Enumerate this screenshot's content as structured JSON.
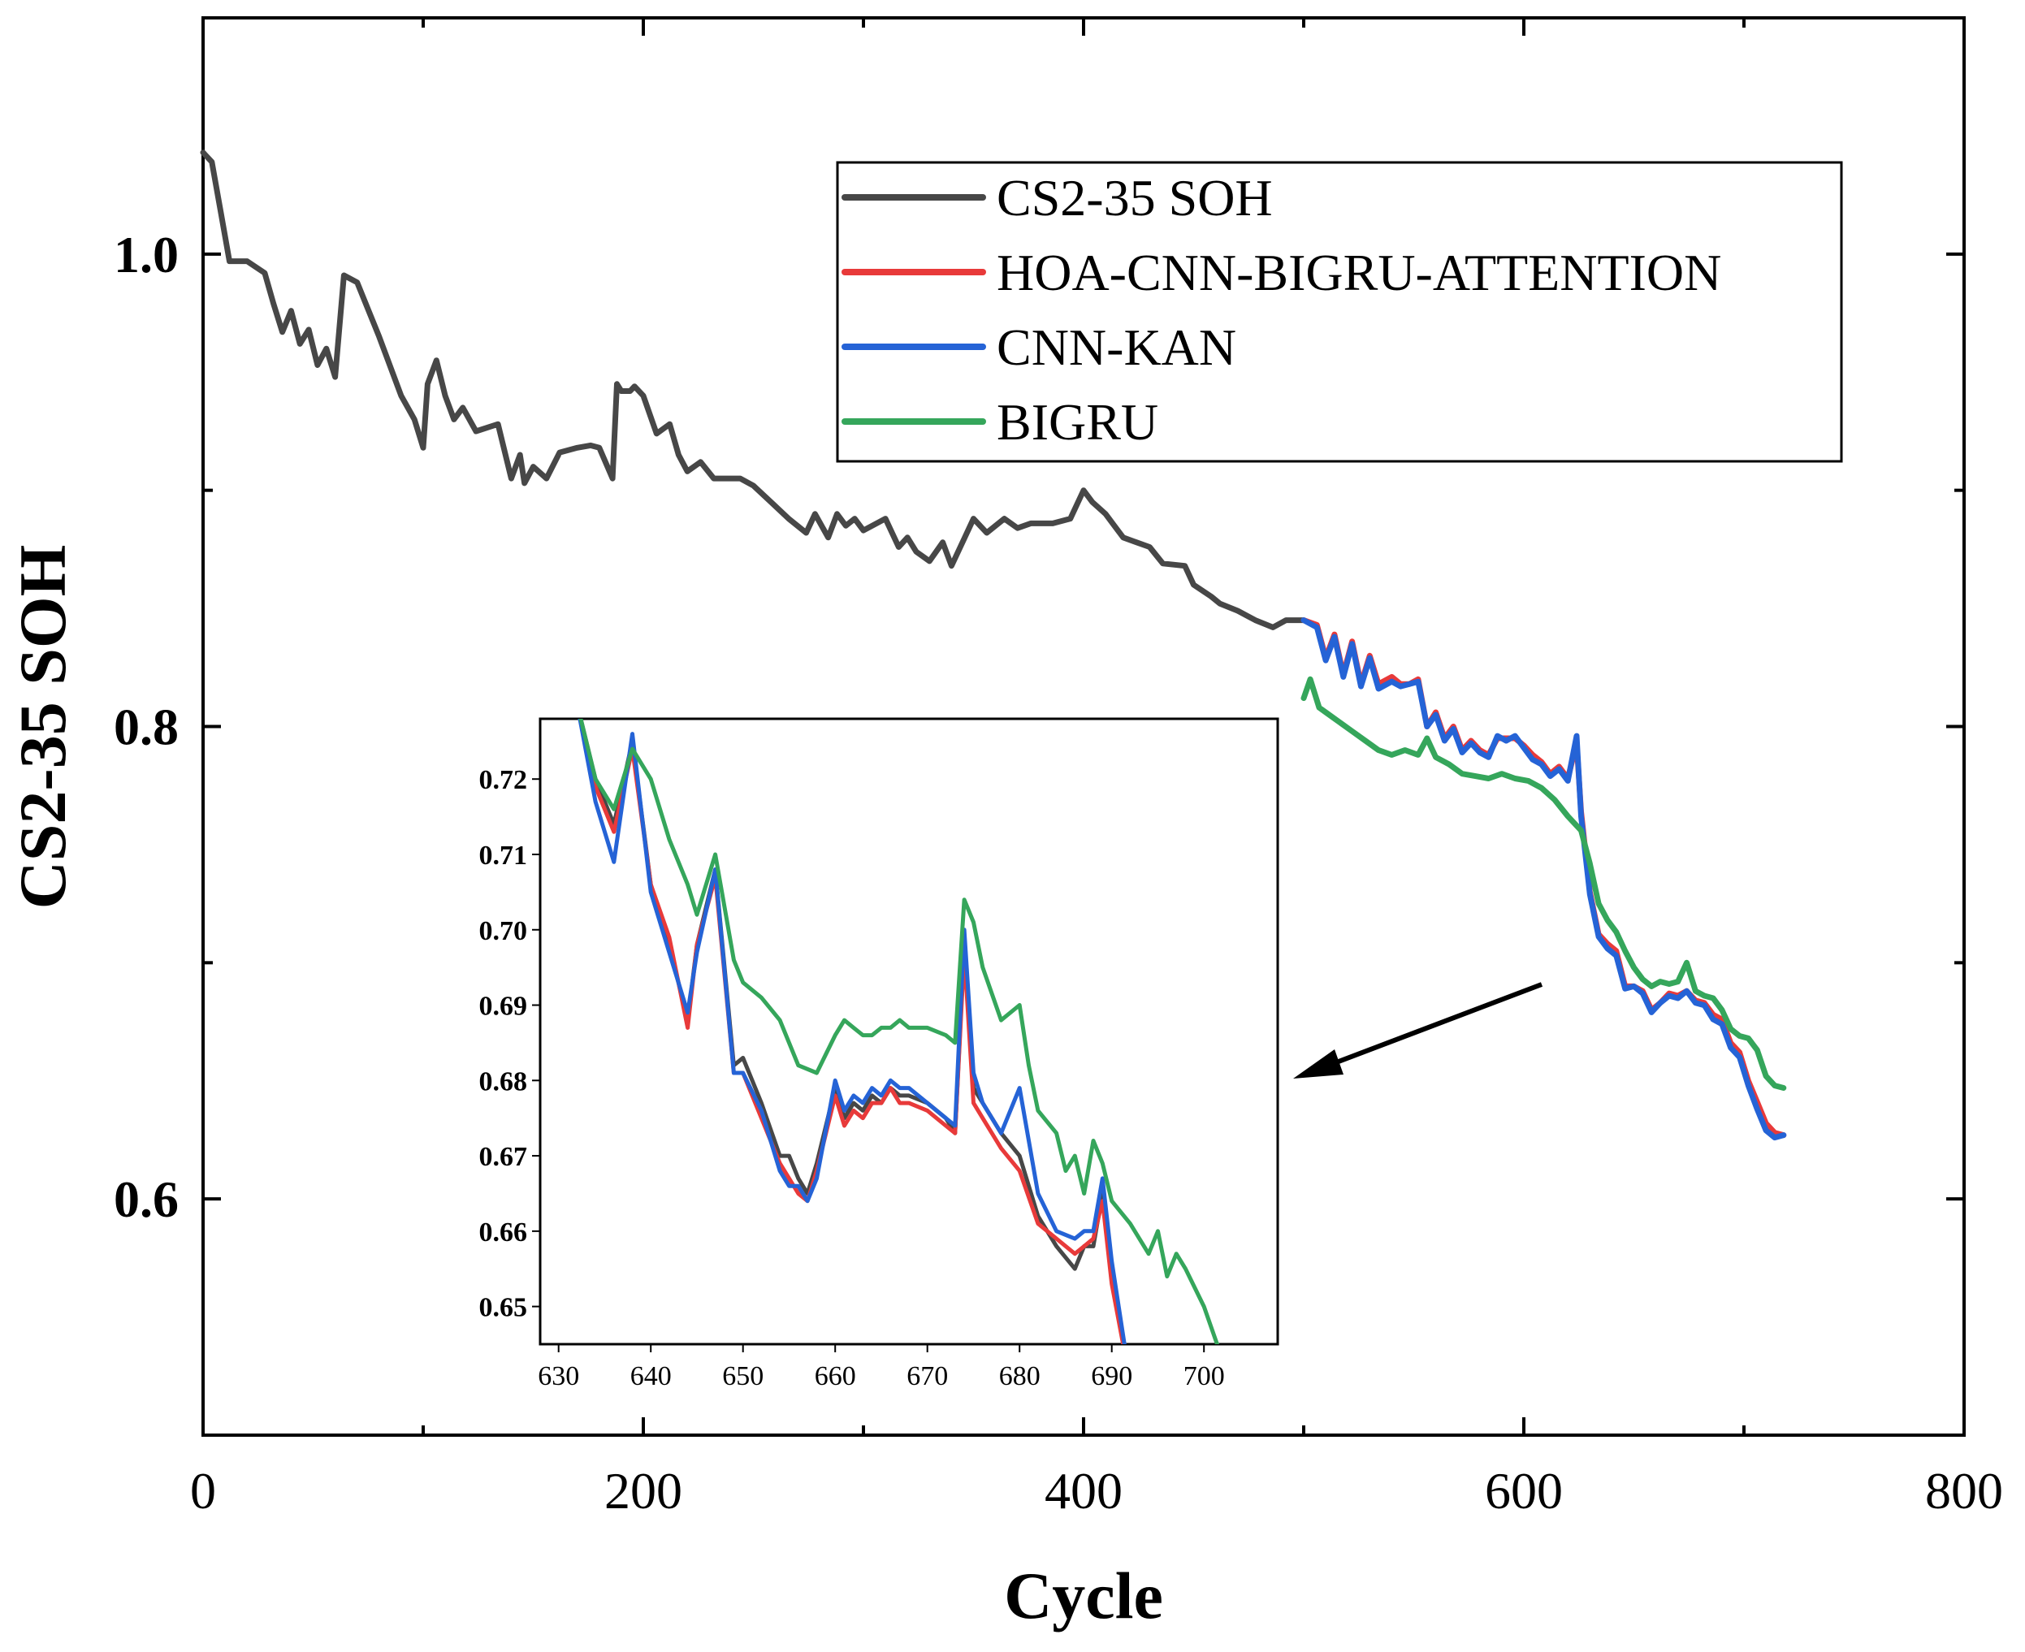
{
  "chart_data": {
    "type": "line",
    "xlabel": "Cycle",
    "ylabel": "CS2-35 SOH",
    "xlim": [
      0,
      800
    ],
    "ylim": [
      0.5,
      1.1
    ],
    "xticks": [
      "0",
      "200",
      "400",
      "600",
      "800"
    ],
    "yticks": [
      "0.6",
      "0.8",
      "1.0"
    ],
    "grid": false,
    "legend_position": "top-right",
    "series": [
      {
        "name": "CS2-35 SOH",
        "color": "#474747",
        "x": [
          0,
          4,
          8,
          12,
          20,
          28,
          32,
          36,
          40,
          44,
          48,
          52,
          56,
          60,
          64,
          70,
          80,
          90,
          96,
          100,
          102,
          106,
          110,
          114,
          118,
          124,
          134,
          140,
          144,
          146,
          150,
          156,
          162,
          170,
          176,
          180,
          186,
          188,
          190,
          194,
          196,
          200,
          206,
          212,
          216,
          220,
          226,
          232,
          238,
          244,
          250,
          258,
          266,
          274,
          278,
          284,
          288,
          292,
          296,
          300,
          310,
          316,
          320,
          324,
          330,
          336,
          340,
          346,
          350,
          356,
          364,
          370,
          376,
          386,
          394,
          400,
          404,
          410,
          414,
          418,
          424,
          430,
          436,
          446,
          450,
          458,
          462,
          470,
          478,
          486,
          492,
          500
        ],
        "y": [
          1.043,
          1.039,
          1.018,
          0.997,
          0.997,
          0.992,
          0.979,
          0.967,
          0.976,
          0.962,
          0.968,
          0.953,
          0.96,
          0.948,
          0.991,
          0.988,
          0.965,
          0.94,
          0.93,
          0.918,
          0.945,
          0.955,
          0.94,
          0.93,
          0.935,
          0.925,
          0.928,
          0.905,
          0.915,
          0.903,
          0.91,
          0.905,
          0.916,
          0.918,
          0.919,
          0.918,
          0.905,
          0.945,
          0.942,
          0.942,
          0.944,
          0.94,
          0.924,
          0.928,
          0.915,
          0.908,
          0.912,
          0.905,
          0.905,
          0.905,
          0.902,
          0.895,
          0.888,
          0.882,
          0.89,
          0.88,
          0.89,
          0.885,
          0.888,
          0.883,
          0.888,
          0.876,
          0.88,
          0.874,
          0.87,
          0.878,
          0.868,
          0.88,
          0.888,
          0.882,
          0.888,
          0.884,
          0.886,
          0.886,
          0.888,
          0.9,
          0.895,
          0.89,
          0.885,
          0.88,
          0.878,
          0.876,
          0.869,
          0.868,
          0.86,
          0.855,
          0.852,
          0.849,
          0.845,
          0.842,
          0.845,
          0.845
        ]
      },
      {
        "name": "HOA-CNN-BIGRU-ATTENTION",
        "color": "#e83a3a",
        "x": [
          500,
          506,
          510,
          514,
          518,
          522,
          526,
          530,
          534,
          540,
          544,
          548,
          552,
          556,
          560,
          564,
          568,
          572,
          576,
          580,
          584,
          588,
          592,
          596,
          600,
          604,
          608,
          612,
          616,
          620,
          624,
          626,
          630,
          634,
          638,
          642,
          646,
          650,
          654,
          658,
          662,
          666,
          670,
          674,
          678,
          682,
          686,
          690,
          694,
          698,
          702,
          706,
          710,
          714,
          718
        ],
        "y": [
          0.845,
          0.843,
          0.829,
          0.839,
          0.822,
          0.836,
          0.818,
          0.83,
          0.818,
          0.821,
          0.818,
          0.818,
          0.82,
          0.8,
          0.806,
          0.795,
          0.8,
          0.79,
          0.794,
          0.79,
          0.788,
          0.795,
          0.795,
          0.795,
          0.792,
          0.788,
          0.785,
          0.78,
          0.783,
          0.778,
          0.793,
          0.764,
          0.73,
          0.712,
          0.708,
          0.705,
          0.69,
          0.69,
          0.688,
          0.68,
          0.683,
          0.687,
          0.686,
          0.688,
          0.684,
          0.683,
          0.678,
          0.676,
          0.666,
          0.662,
          0.65,
          0.641,
          0.632,
          0.628,
          0.627
        ]
      },
      {
        "name": "CNN-KAN",
        "color": "#2563d6",
        "x": [
          500,
          506,
          510,
          514,
          518,
          522,
          526,
          530,
          534,
          540,
          544,
          548,
          552,
          556,
          560,
          564,
          568,
          572,
          576,
          580,
          584,
          588,
          592,
          596,
          600,
          604,
          608,
          612,
          616,
          620,
          624,
          626,
          630,
          634,
          638,
          642,
          646,
          650,
          654,
          658,
          662,
          666,
          670,
          674,
          678,
          682,
          686,
          690,
          694,
          698,
          702,
          706,
          710,
          714,
          718
        ],
        "y": [
          0.845,
          0.842,
          0.828,
          0.838,
          0.821,
          0.835,
          0.817,
          0.829,
          0.816,
          0.819,
          0.817,
          0.818,
          0.819,
          0.8,
          0.805,
          0.794,
          0.799,
          0.789,
          0.793,
          0.789,
          0.787,
          0.796,
          0.794,
          0.796,
          0.791,
          0.786,
          0.784,
          0.779,
          0.782,
          0.777,
          0.796,
          0.762,
          0.729,
          0.711,
          0.706,
          0.703,
          0.689,
          0.69,
          0.687,
          0.679,
          0.683,
          0.686,
          0.685,
          0.688,
          0.683,
          0.682,
          0.676,
          0.674,
          0.664,
          0.66,
          0.648,
          0.638,
          0.629,
          0.626,
          0.627
        ]
      },
      {
        "name": "BIGRU",
        "color": "#35a65b",
        "x": [
          500,
          503,
          507,
          510,
          516,
          522,
          528,
          534,
          540,
          546,
          552,
          556,
          560,
          566,
          572,
          578,
          584,
          590,
          596,
          602,
          608,
          614,
          620,
          626,
          630,
          634,
          638,
          642,
          646,
          650,
          654,
          658,
          662,
          666,
          670,
          674,
          678,
          682,
          686,
          690,
          694,
          698,
          702,
          706,
          710,
          714,
          718
        ],
        "y": [
          0.812,
          0.82,
          0.808,
          0.806,
          0.802,
          0.798,
          0.794,
          0.79,
          0.788,
          0.79,
          0.788,
          0.795,
          0.787,
          0.784,
          0.78,
          0.779,
          0.778,
          0.78,
          0.778,
          0.777,
          0.774,
          0.769,
          0.762,
          0.756,
          0.742,
          0.725,
          0.718,
          0.713,
          0.705,
          0.698,
          0.693,
          0.69,
          0.692,
          0.691,
          0.692,
          0.7,
          0.688,
          0.686,
          0.685,
          0.68,
          0.672,
          0.669,
          0.668,
          0.663,
          0.652,
          0.648,
          0.647
        ]
      }
    ],
    "inset": {
      "xlim": [
        628,
        708
      ],
      "ylim": [
        0.645,
        0.728
      ],
      "xticks": [
        "630",
        "640",
        "650",
        "660",
        "670",
        "680",
        "690",
        "700"
      ],
      "yticks": [
        "0.65",
        "0.66",
        "0.67",
        "0.68",
        "0.69",
        "0.70",
        "0.71",
        "0.72"
      ],
      "series": [
        {
          "name": "CS2-35 SOH",
          "color": "#474747",
          "x": [
            632,
            634,
            636,
            638,
            640,
            642,
            644,
            645,
            647,
            649,
            650,
            652,
            654,
            655,
            656,
            657,
            658,
            660,
            661,
            662,
            663,
            664,
            665,
            666,
            667,
            668,
            670,
            672,
            673,
            674,
            675,
            676,
            678,
            680,
            682,
            684,
            686,
            687,
            688,
            689,
            690,
            692
          ],
          "y": [
            0.73,
            0.72,
            0.714,
            0.725,
            0.706,
            0.698,
            0.688,
            0.698,
            0.708,
            0.682,
            0.683,
            0.677,
            0.67,
            0.67,
            0.667,
            0.665,
            0.669,
            0.679,
            0.675,
            0.677,
            0.676,
            0.678,
            0.677,
            0.679,
            0.678,
            0.678,
            0.677,
            0.675,
            0.673,
            0.698,
            0.679,
            0.677,
            0.673,
            0.67,
            0.662,
            0.658,
            0.655,
            0.658,
            0.658,
            0.665,
            0.654,
            0.64
          ]
        },
        {
          "name": "HOA-CNN-BIGRU-ATTENTION",
          "color": "#e83a3a",
          "x": [
            632,
            634,
            636,
            638,
            640,
            642,
            644,
            645,
            647,
            649,
            650,
            652,
            654,
            655,
            656,
            657,
            658,
            660,
            661,
            662,
            663,
            664,
            665,
            666,
            667,
            668,
            670,
            672,
            673,
            674,
            675,
            676,
            678,
            680,
            682,
            684,
            686,
            687,
            688,
            689,
            690,
            692
          ],
          "y": [
            0.73,
            0.719,
            0.713,
            0.724,
            0.706,
            0.699,
            0.687,
            0.698,
            0.707,
            0.681,
            0.681,
            0.675,
            0.669,
            0.667,
            0.665,
            0.664,
            0.668,
            0.678,
            0.674,
            0.676,
            0.675,
            0.677,
            0.677,
            0.679,
            0.677,
            0.677,
            0.676,
            0.674,
            0.673,
            0.697,
            0.677,
            0.675,
            0.671,
            0.668,
            0.661,
            0.659,
            0.657,
            0.658,
            0.659,
            0.664,
            0.653,
            0.64
          ]
        },
        {
          "name": "CNN-KAN",
          "color": "#2563d6",
          "x": [
            632,
            634,
            636,
            638,
            640,
            642,
            644,
            645,
            647,
            649,
            650,
            652,
            654,
            655,
            656,
            657,
            658,
            660,
            661,
            662,
            663,
            664,
            665,
            666,
            667,
            668,
            670,
            672,
            673,
            674,
            675,
            676,
            678,
            680,
            682,
            684,
            686,
            687,
            688,
            689,
            690,
            692
          ],
          "y": [
            0.73,
            0.717,
            0.709,
            0.726,
            0.705,
            0.697,
            0.689,
            0.697,
            0.708,
            0.681,
            0.681,
            0.676,
            0.668,
            0.666,
            0.666,
            0.664,
            0.667,
            0.68,
            0.676,
            0.678,
            0.677,
            0.679,
            0.678,
            0.68,
            0.679,
            0.679,
            0.677,
            0.675,
            0.674,
            0.7,
            0.681,
            0.677,
            0.673,
            0.679,
            0.665,
            0.66,
            0.659,
            0.66,
            0.66,
            0.667,
            0.656,
            0.64
          ]
        },
        {
          "name": "BIGRU",
          "color": "#35a65b",
          "x": [
            632,
            634,
            636,
            638,
            640,
            642,
            644,
            645,
            647,
            649,
            650,
            652,
            654,
            656,
            658,
            660,
            661,
            662,
            663,
            664,
            665,
            666,
            667,
            668,
            670,
            672,
            673,
            674,
            675,
            676,
            678,
            680,
            681,
            682,
            684,
            685,
            686,
            687,
            688,
            689,
            690,
            692,
            694,
            695,
            696,
            697,
            698,
            700,
            702
          ],
          "y": [
            0.73,
            0.72,
            0.716,
            0.724,
            0.72,
            0.712,
            0.706,
            0.702,
            0.71,
            0.696,
            0.693,
            0.691,
            0.688,
            0.682,
            0.681,
            0.686,
            0.688,
            0.687,
            0.686,
            0.686,
            0.687,
            0.687,
            0.688,
            0.687,
            0.687,
            0.686,
            0.685,
            0.704,
            0.701,
            0.695,
            0.688,
            0.69,
            0.682,
            0.676,
            0.673,
            0.668,
            0.67,
            0.665,
            0.672,
            0.669,
            0.664,
            0.661,
            0.657,
            0.66,
            0.654,
            0.657,
            0.655,
            0.65,
            0.643
          ]
        }
      ]
    }
  }
}
